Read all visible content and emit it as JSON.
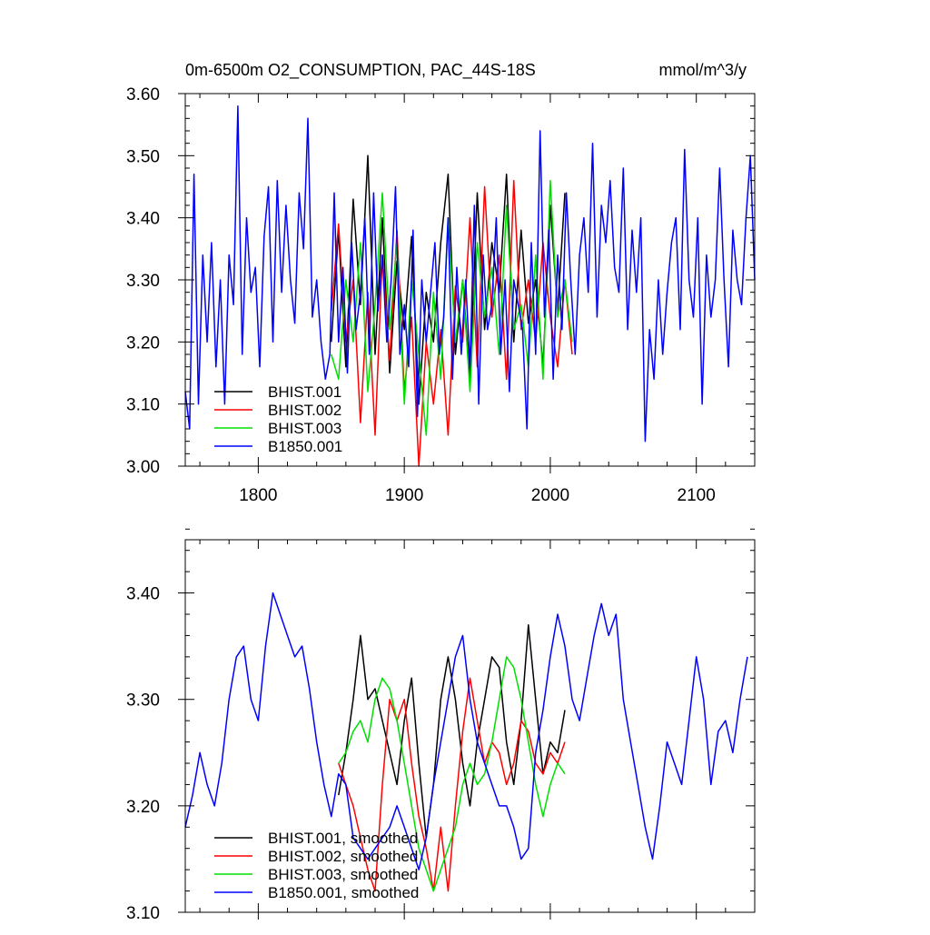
{
  "colors": {
    "BHIST.001": "#000000",
    "BHIST.002": "#ff0000",
    "BHIST.003": "#00e000",
    "B1850.001": "#0000ff"
  },
  "chart_data": [
    {
      "type": "line",
      "title": "0m-6500m O2_CONSUMPTION, PAC_44S-18S",
      "units": "mmol/m^3/y",
      "xlim": [
        1750,
        2140
      ],
      "ylim": [
        3.0,
        3.6
      ],
      "xticks": [
        1800,
        1900,
        2000,
        2100
      ],
      "xtick_labels": [
        "1800",
        "1900",
        "2000",
        "2100"
      ],
      "yticks": [
        3.0,
        3.1,
        3.2,
        3.3,
        3.4,
        3.5,
        3.6
      ],
      "ytick_labels": [
        "3.00",
        "3.10",
        "3.20",
        "3.30",
        "3.40",
        "3.50",
        "3.60"
      ],
      "legend_position": "lower-left",
      "series": [
        {
          "name": "BHIST.001",
          "color": "#000000",
          "x": [
            1850,
            1855,
            1860,
            1865,
            1870,
            1875,
            1880,
            1885,
            1890,
            1895,
            1900,
            1905,
            1910,
            1915,
            1920,
            1925,
            1930,
            1935,
            1940,
            1945,
            1950,
            1955,
            1960,
            1965,
            1970,
            1975,
            1980,
            1985,
            1990,
            1995,
            2000,
            2005,
            2010
          ],
          "values": [
            3.2,
            3.38,
            3.16,
            3.43,
            3.26,
            3.5,
            3.18,
            3.4,
            3.15,
            3.33,
            3.22,
            3.37,
            3.1,
            3.28,
            3.2,
            3.36,
            3.47,
            3.18,
            3.3,
            3.14,
            3.44,
            3.22,
            3.36,
            3.28,
            3.47,
            3.2,
            3.38,
            3.23,
            3.3,
            3.16,
            3.42,
            3.25,
            3.44
          ]
        },
        {
          "name": "BHIST.002",
          "color": "#ff0000",
          "x": [
            1850,
            1855,
            1860,
            1865,
            1870,
            1875,
            1880,
            1885,
            1890,
            1895,
            1900,
            1905,
            1910,
            1915,
            1920,
            1925,
            1930,
            1935,
            1940,
            1945,
            1950,
            1955,
            1960,
            1965,
            1970,
            1975,
            1980,
            1985,
            1990,
            1995,
            2000,
            2005,
            2010,
            2015
          ],
          "values": [
            3.25,
            3.39,
            3.2,
            3.3,
            3.07,
            3.28,
            3.05,
            3.34,
            3.17,
            3.38,
            3.12,
            3.24,
            3.0,
            3.2,
            3.1,
            3.22,
            3.05,
            3.29,
            3.2,
            3.4,
            3.16,
            3.45,
            3.24,
            3.34,
            3.14,
            3.46,
            3.22,
            3.3,
            3.2,
            3.36,
            3.24,
            3.16,
            3.3,
            3.18
          ]
        },
        {
          "name": "BHIST.003",
          "color": "#00e000",
          "x": [
            1850,
            1855,
            1860,
            1865,
            1870,
            1875,
            1880,
            1885,
            1890,
            1895,
            1900,
            1905,
            1910,
            1915,
            1920,
            1925,
            1930,
            1935,
            1940,
            1945,
            1950,
            1955,
            1960,
            1965,
            1970,
            1975,
            1980,
            1985,
            1990,
            1995,
            2000,
            2005,
            2010,
            2015
          ],
          "values": [
            3.18,
            3.14,
            3.3,
            3.2,
            3.36,
            3.12,
            3.26,
            3.44,
            3.22,
            3.36,
            3.1,
            3.3,
            3.18,
            3.05,
            3.28,
            3.14,
            3.4,
            3.2,
            3.3,
            3.12,
            3.36,
            3.24,
            3.32,
            3.18,
            3.42,
            3.22,
            3.26,
            3.16,
            3.34,
            3.14,
            3.46,
            3.24,
            3.3,
            3.2
          ]
        },
        {
          "name": "B1850.001",
          "color": "#0000ff",
          "x": [
            1750,
            1753,
            1756,
            1759,
            1762,
            1765,
            1768,
            1771,
            1774,
            1777,
            1780,
            1783,
            1786,
            1789,
            1792,
            1795,
            1798,
            1801,
            1804,
            1807,
            1810,
            1813,
            1816,
            1819,
            1822,
            1825,
            1828,
            1831,
            1834,
            1837,
            1840,
            1843,
            1846,
            1849,
            1852,
            1855,
            1858,
            1861,
            1864,
            1867,
            1870,
            1873,
            1876,
            1879,
            1882,
            1885,
            1888,
            1891,
            1894,
            1897,
            1900,
            1903,
            1906,
            1909,
            1912,
            1915,
            1918,
            1921,
            1924,
            1927,
            1930,
            1933,
            1936,
            1939,
            1942,
            1945,
            1948,
            1951,
            1954,
            1957,
            1960,
            1963,
            1966,
            1969,
            1972,
            1975,
            1978,
            1981,
            1984,
            1987,
            1990,
            1993,
            1996,
            1999,
            2002,
            2005,
            2008,
            2011,
            2014,
            2017,
            2020,
            2023,
            2026,
            2029,
            2032,
            2035,
            2038,
            2041,
            2044,
            2047,
            2050,
            2053,
            2056,
            2059,
            2062,
            2065,
            2068,
            2071,
            2074,
            2077,
            2080,
            2083,
            2086,
            2089,
            2092,
            2095,
            2098,
            2101,
            2104,
            2107,
            2110,
            2113,
            2116,
            2119,
            2122,
            2125,
            2128,
            2131,
            2134,
            2137,
            2140
          ],
          "values": [
            3.12,
            3.06,
            3.47,
            3.1,
            3.34,
            3.2,
            3.36,
            3.16,
            3.3,
            3.1,
            3.34,
            3.26,
            3.58,
            3.18,
            3.4,
            3.28,
            3.32,
            3.16,
            3.37,
            3.45,
            3.2,
            3.46,
            3.28,
            3.42,
            3.3,
            3.23,
            3.44,
            3.35,
            3.56,
            3.24,
            3.3,
            3.2,
            3.14,
            3.18,
            3.44,
            3.2,
            3.32,
            3.15,
            3.36,
            3.22,
            3.28,
            3.4,
            3.18,
            3.44,
            3.25,
            3.34,
            3.2,
            3.3,
            3.45,
            3.18,
            3.26,
            3.16,
            3.38,
            3.08,
            3.3,
            3.2,
            3.28,
            3.36,
            3.18,
            3.24,
            3.4,
            3.14,
            3.32,
            3.18,
            3.3,
            3.16,
            3.42,
            3.1,
            3.34,
            3.22,
            3.26,
            3.4,
            3.18,
            3.3,
            3.12,
            3.3,
            3.26,
            3.22,
            3.06,
            3.36,
            3.18,
            3.54,
            3.24,
            3.38,
            3.14,
            3.34,
            3.22,
            3.44,
            3.3,
            3.18,
            3.34,
            3.4,
            3.28,
            3.52,
            3.24,
            3.42,
            3.36,
            3.46,
            3.32,
            3.28,
            3.48,
            3.22,
            3.38,
            3.28,
            3.4,
            3.04,
            3.22,
            3.14,
            3.3,
            3.18,
            3.28,
            3.36,
            3.4,
            3.22,
            3.51,
            3.3,
            3.24,
            3.4,
            3.1,
            3.34,
            3.24,
            3.3,
            3.48,
            3.3,
            3.16,
            3.38,
            3.3,
            3.26,
            3.4,
            3.5,
            3.3
          ]
        }
      ]
    },
    {
      "type": "line",
      "title": "",
      "xlim": [
        1750,
        2140
      ],
      "ylim": [
        3.1,
        3.45
      ],
      "xticks": [
        1800,
        1900,
        2000,
        2100
      ],
      "yticks": [
        3.1,
        3.2,
        3.3,
        3.4
      ],
      "ytick_labels": [
        "3.10",
        "3.20",
        "3.30",
        "3.40"
      ],
      "legend_position": "lower-left",
      "series": [
        {
          "name": "BHIST.001, smoothed",
          "color": "#000000",
          "x": [
            1855,
            1860,
            1865,
            1870,
            1875,
            1880,
            1885,
            1890,
            1895,
            1900,
            1905,
            1910,
            1915,
            1920,
            1925,
            1930,
            1935,
            1940,
            1945,
            1950,
            1955,
            1960,
            1965,
            1970,
            1975,
            1980,
            1985,
            1990,
            1995,
            2000,
            2005,
            2010
          ],
          "values": [
            3.21,
            3.25,
            3.3,
            3.36,
            3.3,
            3.31,
            3.28,
            3.25,
            3.22,
            3.28,
            3.32,
            3.24,
            3.17,
            3.22,
            3.3,
            3.34,
            3.3,
            3.24,
            3.2,
            3.26,
            3.3,
            3.34,
            3.33,
            3.26,
            3.22,
            3.28,
            3.37,
            3.3,
            3.23,
            3.26,
            3.25,
            3.29
          ]
        },
        {
          "name": "BHIST.002, smoothed",
          "color": "#ff0000",
          "x": [
            1855,
            1860,
            1865,
            1870,
            1875,
            1880,
            1885,
            1890,
            1895,
            1900,
            1905,
            1910,
            1915,
            1920,
            1925,
            1930,
            1935,
            1940,
            1945,
            1950,
            1955,
            1960,
            1965,
            1970,
            1975,
            1980,
            1985,
            1990,
            1995,
            2000,
            2005,
            2010
          ],
          "values": [
            3.24,
            3.22,
            3.2,
            3.17,
            3.14,
            3.12,
            3.22,
            3.3,
            3.28,
            3.3,
            3.24,
            3.19,
            3.16,
            3.12,
            3.18,
            3.12,
            3.2,
            3.27,
            3.32,
            3.28,
            3.24,
            3.26,
            3.25,
            3.22,
            3.24,
            3.28,
            3.27,
            3.24,
            3.23,
            3.25,
            3.24,
            3.26
          ]
        },
        {
          "name": "BHIST.003, smoothed",
          "color": "#00e000",
          "x": [
            1855,
            1860,
            1865,
            1870,
            1875,
            1880,
            1885,
            1890,
            1895,
            1900,
            1905,
            1910,
            1915,
            1920,
            1925,
            1930,
            1935,
            1940,
            1945,
            1950,
            1955,
            1960,
            1965,
            1970,
            1975,
            1980,
            1985,
            1990,
            1995,
            2000,
            2005,
            2010
          ],
          "values": [
            3.24,
            3.25,
            3.27,
            3.28,
            3.26,
            3.3,
            3.32,
            3.31,
            3.28,
            3.24,
            3.2,
            3.16,
            3.14,
            3.12,
            3.14,
            3.16,
            3.18,
            3.22,
            3.24,
            3.22,
            3.23,
            3.26,
            3.3,
            3.34,
            3.33,
            3.3,
            3.26,
            3.22,
            3.19,
            3.22,
            3.24,
            3.23
          ]
        },
        {
          "name": "B1850.001, smoothed",
          "color": "#0000ff",
          "x": [
            1750,
            1755,
            1760,
            1765,
            1770,
            1775,
            1780,
            1785,
            1790,
            1795,
            1800,
            1805,
            1810,
            1815,
            1820,
            1825,
            1830,
            1835,
            1840,
            1845,
            1850,
            1855,
            1860,
            1865,
            1870,
            1875,
            1880,
            1885,
            1890,
            1895,
            1900,
            1905,
            1910,
            1915,
            1920,
            1925,
            1930,
            1935,
            1940,
            1945,
            1950,
            1955,
            1960,
            1965,
            1970,
            1975,
            1980,
            1985,
            1990,
            1995,
            2000,
            2005,
            2010,
            2015,
            2020,
            2025,
            2030,
            2035,
            2040,
            2045,
            2050,
            2055,
            2060,
            2065,
            2070,
            2075,
            2080,
            2085,
            2090,
            2095,
            2100,
            2105,
            2110,
            2115,
            2120,
            2125,
            2130,
            2135
          ],
          "values": [
            3.18,
            3.21,
            3.25,
            3.22,
            3.2,
            3.24,
            3.3,
            3.34,
            3.35,
            3.3,
            3.28,
            3.35,
            3.4,
            3.38,
            3.36,
            3.34,
            3.35,
            3.31,
            3.26,
            3.22,
            3.19,
            3.23,
            3.22,
            3.17,
            3.16,
            3.15,
            3.16,
            3.17,
            3.18,
            3.2,
            3.18,
            3.16,
            3.14,
            3.17,
            3.22,
            3.26,
            3.3,
            3.34,
            3.36,
            3.3,
            3.26,
            3.24,
            3.22,
            3.2,
            3.2,
            3.18,
            3.15,
            3.16,
            3.25,
            3.29,
            3.34,
            3.38,
            3.35,
            3.3,
            3.28,
            3.32,
            3.36,
            3.39,
            3.36,
            3.38,
            3.3,
            3.26,
            3.22,
            3.18,
            3.15,
            3.2,
            3.26,
            3.24,
            3.22,
            3.28,
            3.34,
            3.3,
            3.22,
            3.27,
            3.28,
            3.25,
            3.3,
            3.34
          ]
        }
      ]
    }
  ]
}
